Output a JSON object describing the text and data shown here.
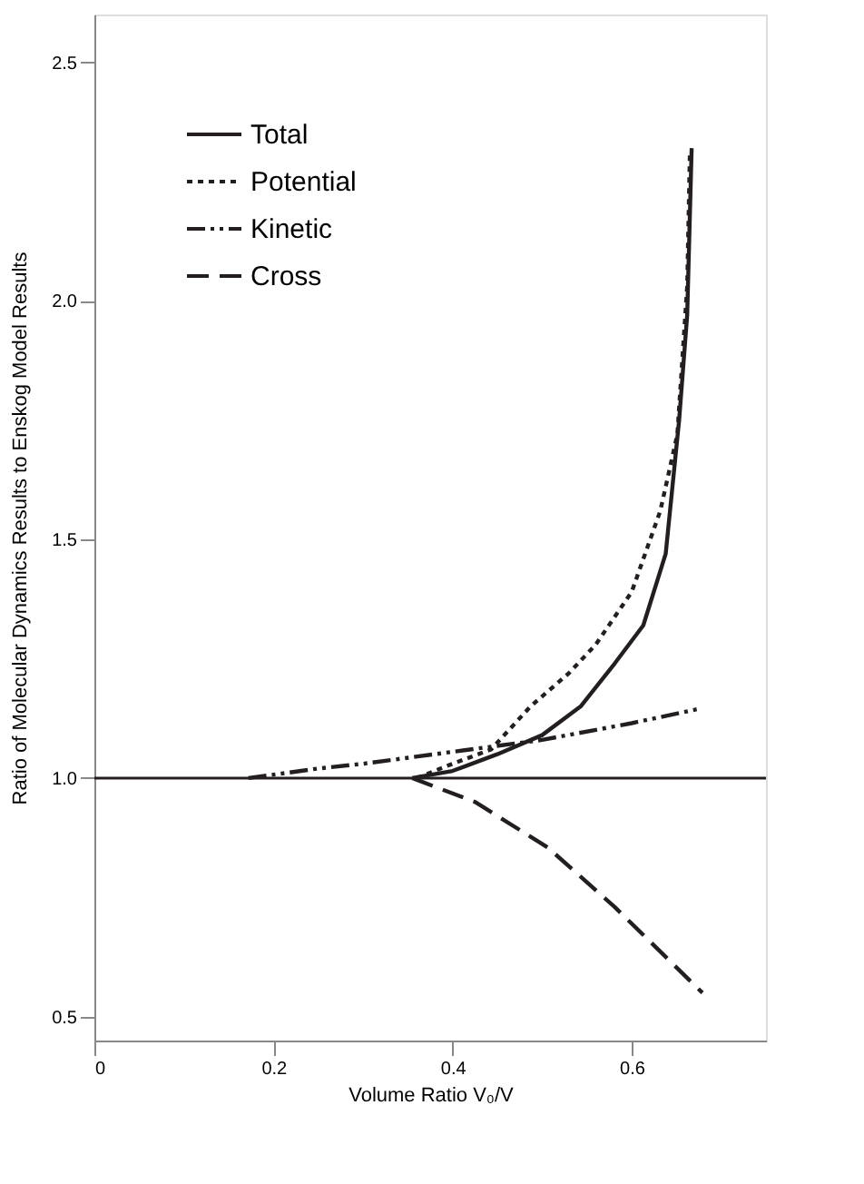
{
  "chart_data": {
    "type": "line",
    "xlabel": "Volume Ratio V₀/V",
    "ylabel": "Ratio of Molecular Dynamics Results to Enskog Model Results",
    "xlim": [
      0,
      0.75
    ],
    "xticks": [
      0,
      0.2,
      0.4,
      0.6
    ],
    "ylim": [
      0.45,
      2.6
    ],
    "yticks": [
      0.5,
      {
        "value": 1,
        "label": "1.0"
      },
      1.5,
      {
        "value": 2,
        "label": "2.0"
      },
      2.5
    ],
    "grid": false,
    "legend": "top left",
    "marker": "none",
    "ref_lines": [
      {
        "axis": "y",
        "value": 1.0,
        "color": "#231f20",
        "line_style": "solid"
      }
    ],
    "series": [
      {
        "name": "Total",
        "color": "#231f20",
        "line_style": "solid",
        "x": [
          0.355,
          0.4,
          0.45,
          0.5,
          0.543,
          0.581,
          0.613,
          0.638,
          0.653,
          0.662,
          0.667
        ],
        "values": [
          1.0,
          1.015,
          1.05,
          1.09,
          1.15,
          1.24,
          1.32,
          1.47,
          1.75,
          1.97,
          2.32
        ]
      },
      {
        "name": "Potential",
        "color": "#231f20",
        "line_style": "dotted",
        "x": [
          0.36,
          0.4,
          0.443,
          0.487,
          0.53,
          0.56,
          0.6,
          0.632,
          0.651,
          0.662,
          0.665
        ],
        "values": [
          1.0,
          1.03,
          1.06,
          1.15,
          1.22,
          1.28,
          1.39,
          1.56,
          1.72,
          2.03,
          2.31
        ]
      },
      {
        "name": "Kinetic",
        "color": "#231f20",
        "line_style": "dashdotdot",
        "x": [
          0.172,
          0.25,
          0.3,
          0.4,
          0.5,
          0.6,
          0.675
        ],
        "values": [
          1.0,
          1.02,
          1.03,
          1.055,
          1.08,
          1.115,
          1.145
        ]
      },
      {
        "name": "Cross",
        "color": "#231f20",
        "line_style": "dashed",
        "x": [
          0.355,
          0.425,
          0.506,
          0.581,
          0.679
        ],
        "values": [
          1.0,
          0.95,
          0.855,
          0.73,
          0.55
        ]
      }
    ]
  }
}
